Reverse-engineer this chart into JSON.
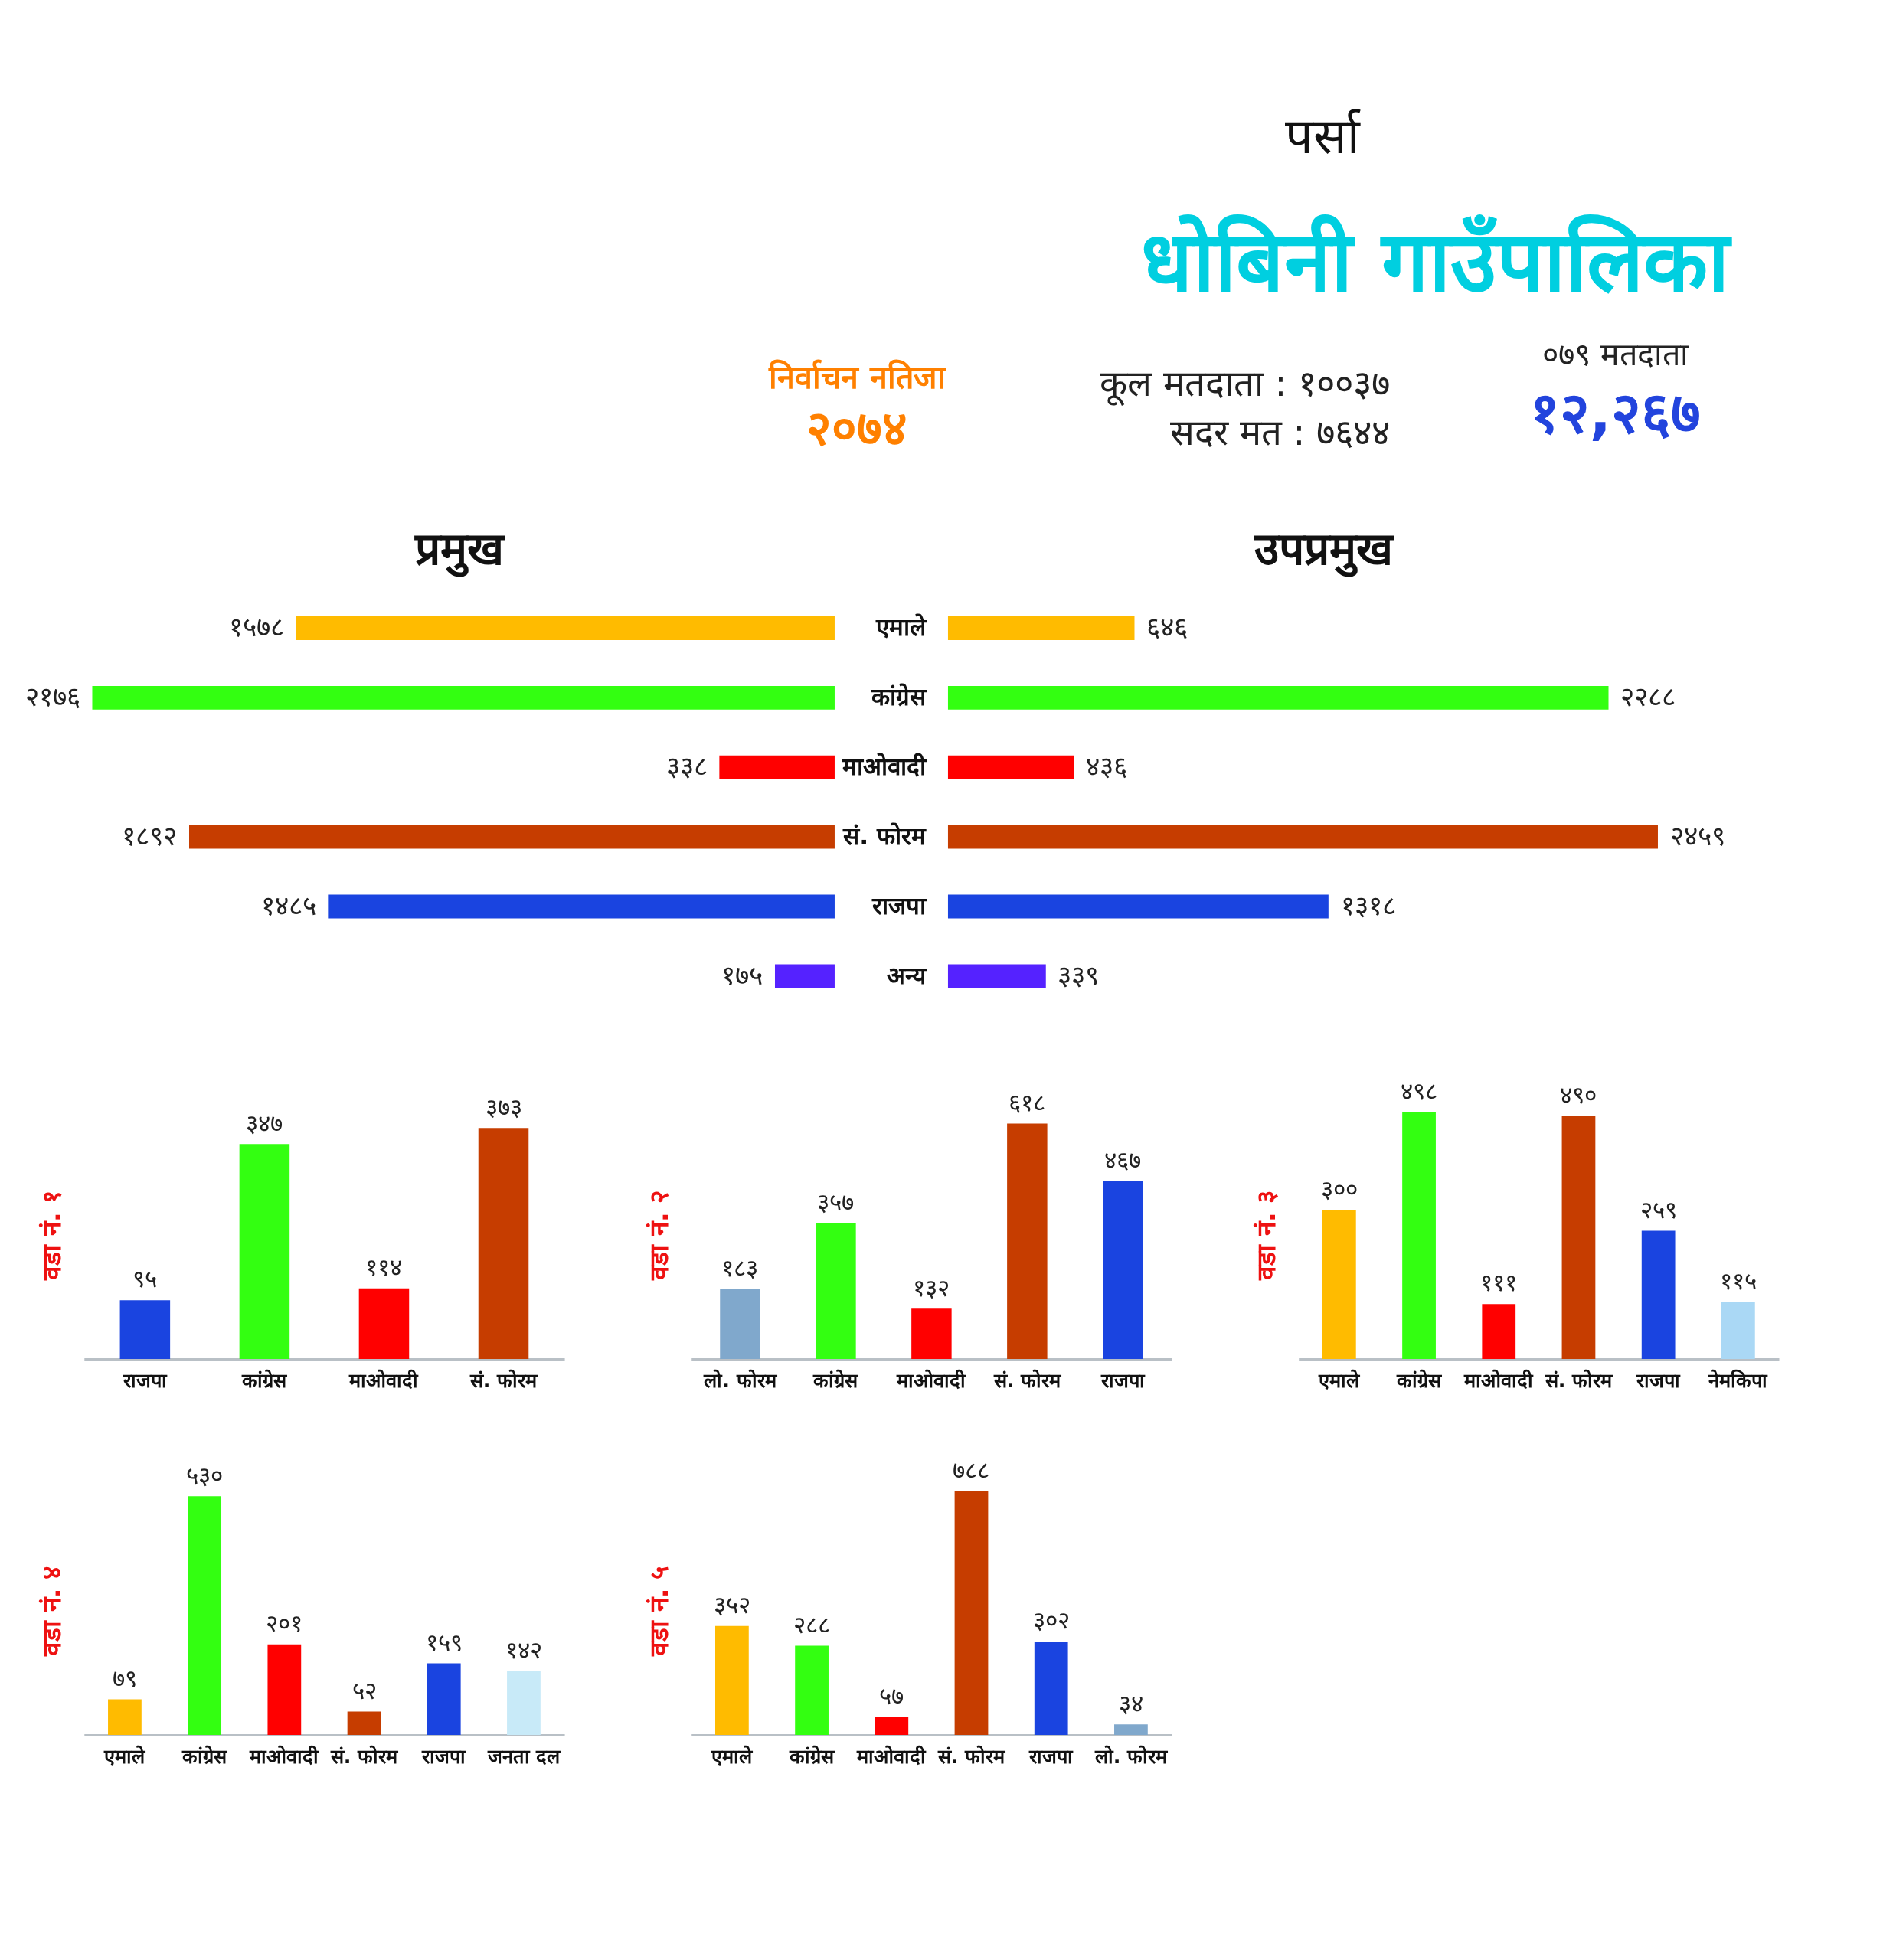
{
  "chart_data": [
    {
      "type": "other",
      "title": "धोबिनी गाउँपालिका",
      "subtitle": "पर्सा",
      "annotations": [
        "निर्वाचन नतिजा",
        "२०७४",
        "कूल मतदाता : १००३७",
        "सदर मत : ७६४४",
        "०७९ मतदाता",
        "१२,२६७"
      ]
    },
    {
      "type": "bar",
      "orientation": "horizontal",
      "title": "प्रमुख",
      "categories": [
        null,
        null,
        null,
        null,
        null,
        null
      ],
      "values": [
        1578,
        2176,
        338,
        1892,
        1485,
        175
      ],
      "colors": [
        "#ffbb00",
        "#33ff11",
        "#ff0000",
        "#c63d00",
        "#1a44e0",
        "#5522ff"
      ],
      "value_labels": [
        "१५७८",
        "२१७६",
        "३३८",
        "१८९२",
        "१४८५",
        "१७५"
      ],
      "tick_labels": false
    },
    {
      "type": "bar",
      "orientation": "horizontal",
      "title": "उपप्रमुख",
      "categories": [
        "एमाले",
        "कांग्रेस",
        "माओवादी",
        "सं. फोरम",
        "राजपा",
        "अन्य"
      ],
      "values": [
        646,
        2288,
        436,
        2459,
        1318,
        339
      ],
      "colors": [
        "#ffbb00",
        "#33ff11",
        "#ff0000",
        "#c63d00",
        "#1a44e0",
        "#5522ff"
      ],
      "value_labels": [
        "६४६",
        "२२८८",
        "४३६",
        "२४५९",
        "१३१८",
        "३३९"
      ],
      "tick_labels": "y"
    },
    {
      "type": "bar",
      "title": "वडा नं. १",
      "categories": [
        "राजपा",
        "कांग्रेस",
        "माओवादी",
        "सं. फोरम"
      ],
      "values": [
        95,
        347,
        114,
        373
      ],
      "colors": [
        "#1a44e0",
        "#33ff11",
        "#ff0000",
        "#c63d00"
      ],
      "value_labels": [
        "९५",
        "३४७",
        "११४",
        "३७३"
      ],
      "tick_labels": "x"
    },
    {
      "type": "bar",
      "title": "वडा नं. २",
      "categories": [
        "लो. फोरम",
        "कांग्रेस",
        "माओवादी",
        "सं. फोरम",
        "राजपा"
      ],
      "values": [
        183,
        357,
        132,
        618,
        467
      ],
      "colors": [
        "#80a8cc",
        "#33ff11",
        "#ff0000",
        "#c63d00",
        "#1a44e0"
      ],
      "value_labels": [
        "१८३",
        "३५७",
        "१३२",
        "६१८",
        "४६७"
      ],
      "tick_labels": "x"
    },
    {
      "type": "bar",
      "title": "वडा नं. ३",
      "categories": [
        "एमाले",
        "कांग्रेस",
        "माओवादी",
        "सं. फोरम",
        "राजपा",
        "नेमकिपा"
      ],
      "values": [
        300,
        498,
        111,
        490,
        259,
        115
      ],
      "colors": [
        "#ffbb00",
        "#33ff11",
        "#ff0000",
        "#c63d00",
        "#1a44e0",
        "#aad8f5"
      ],
      "value_labels": [
        "३००",
        "४९८",
        "१११",
        "४९०",
        "२५९",
        "११५"
      ],
      "tick_labels": "x"
    },
    {
      "type": "bar",
      "title": "वडा नं. ४",
      "categories": [
        "एमाले",
        "कांग्रेस",
        "माओवादी",
        "सं. फोरम",
        "राजपा",
        "जनता दल"
      ],
      "values": [
        79,
        530,
        201,
        52,
        159,
        142
      ],
      "colors": [
        "#ffbb00",
        "#33ff11",
        "#ff0000",
        "#c63d00",
        "#1a44e0",
        "#c8eaf8"
      ],
      "value_labels": [
        "७९",
        "५३०",
        "२०१",
        "५२",
        "१५९",
        "१४२"
      ],
      "tick_labels": "x"
    },
    {
      "type": "bar",
      "title": "वडा नं. ५",
      "categories": [
        "एमाले",
        "कांग्रेस",
        "माओवादी",
        "सं. फोरम",
        "राजपा",
        "लो. फोरम"
      ],
      "values": [
        352,
        288,
        57,
        788,
        302,
        34
      ],
      "colors": [
        "#ffbb00",
        "#33ff11",
        "#ff0000",
        "#c63d00",
        "#1a44e0",
        "#80a8cc"
      ],
      "value_labels": [
        "३५२",
        "२८८",
        "५७",
        "७८८",
        "३०२",
        "३४"
      ],
      "tick_labels": "x"
    }
  ]
}
